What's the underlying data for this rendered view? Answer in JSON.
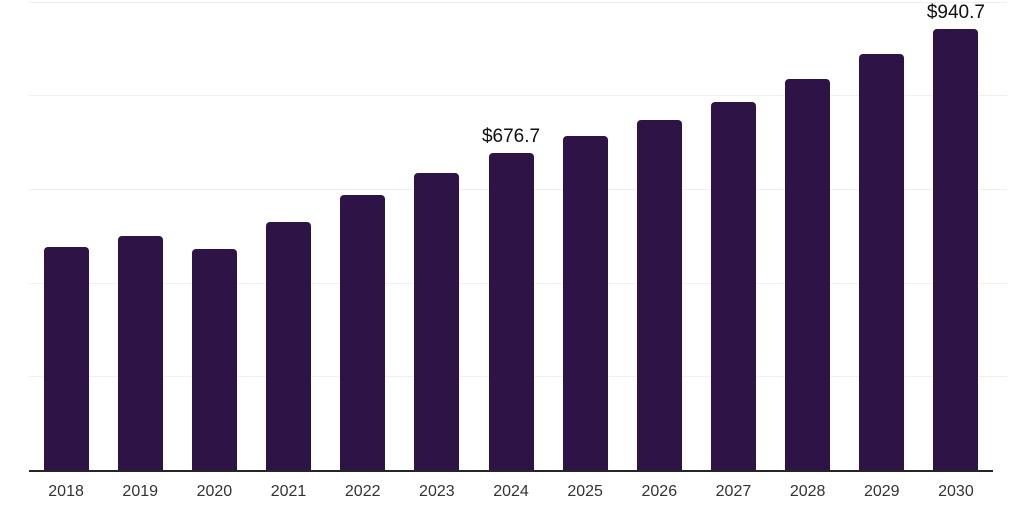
{
  "chart_data": {
    "type": "bar",
    "title": "",
    "xlabel": "",
    "ylabel": "",
    "categories": [
      "2018",
      "2019",
      "2020",
      "2021",
      "2022",
      "2023",
      "2024",
      "2025",
      "2026",
      "2027",
      "2028",
      "2029",
      "2030"
    ],
    "values": [
      476.0,
      499.5,
      471.7,
      529.3,
      587.0,
      633.9,
      676.7,
      712.9,
      747.1,
      785.5,
      834.6,
      887.9,
      940.7
    ],
    "value_labels": [
      {
        "category": "2024",
        "text": "$676.7"
      },
      {
        "category": "2030",
        "text": "$940.7"
      }
    ],
    "ylim": [
      0,
      1000
    ],
    "gridline_step": 200,
    "grid_on": true,
    "legend": "none",
    "colors": {
      "bar": "#2e1347",
      "axis_line": "#262626",
      "gridline": "#f0f0f0",
      "tick_label": "#333333",
      "value_label": "#111111",
      "background": "#ffffff"
    }
  }
}
